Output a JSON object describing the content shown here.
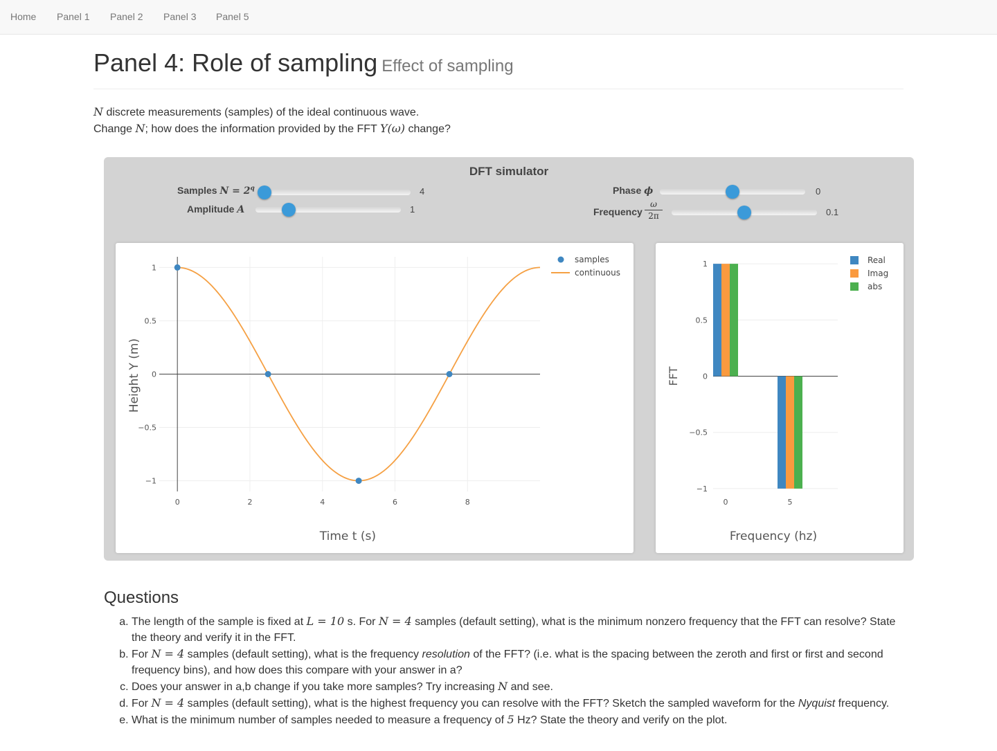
{
  "nav": {
    "items": [
      "Home",
      "Panel 1",
      "Panel 2",
      "Panel 3",
      "Panel 5"
    ]
  },
  "header": {
    "title": "Panel 4: Role of sampling",
    "subtitle": "Effect of sampling"
  },
  "intro": {
    "line1_var": "N",
    "line1_text": " discrete measurements (samples) of the ideal continuous wave.",
    "line2_a": "Change ",
    "line2_var": "N",
    "line2_b": "; how does the information provided by the FFT ",
    "line2_math": "Y(ω)",
    "line2_c": " change?"
  },
  "simulator": {
    "title": "DFT simulator",
    "samples": {
      "label": "Samples",
      "math": "N = 2",
      "sup": "q",
      "value": "4",
      "fraction": 0.0
    },
    "amplitude": {
      "label": "Amplitude",
      "math": "A",
      "value": "1",
      "fraction": 0.2
    },
    "phase": {
      "label": "Phase",
      "math": "ϕ",
      "value": "0",
      "fraction": 0.5
    },
    "frequency": {
      "label": "Frequency",
      "num": "ω",
      "den": "2π",
      "value": "0.1",
      "fraction": 0.5
    }
  },
  "chart_data": [
    {
      "type": "scatter",
      "xlabel": "Time t (s)",
      "ylabel": "Height Y (m)",
      "xlim": [
        -0.5,
        10
      ],
      "ylim": [
        -1.1,
        1.1
      ],
      "xticks": [
        "0",
        "2",
        "4",
        "6",
        "8"
      ],
      "yticks": [
        "1",
        "0.5",
        "0",
        "−0.5",
        "−1"
      ],
      "grid": true,
      "legend": "top-right",
      "series": [
        {
          "name": "samples",
          "mode": "markers",
          "color": "#3f87c1",
          "x": [
            0,
            2.5,
            5,
            7.5
          ],
          "y": [
            1,
            0,
            -1,
            0
          ]
        },
        {
          "name": "continuous",
          "mode": "line",
          "color": "#f5a043",
          "function": "cos(2*pi*0.1*t)",
          "x_range": [
            0,
            10
          ]
        }
      ]
    },
    {
      "type": "bar",
      "xlabel": "Frequency (hz)",
      "ylabel": "FFT",
      "ylim": [
        -1.05,
        1.05
      ],
      "xticks": [
        "0",
        "5"
      ],
      "yticks": [
        "1",
        "0.5",
        "0",
        "−0.5",
        "−1"
      ],
      "grid": true,
      "legend": "top-right",
      "categories": [
        0,
        5
      ],
      "series": [
        {
          "name": "Real",
          "color": "#3f87c1",
          "values": [
            1,
            -1
          ]
        },
        {
          "name": "Imag",
          "color": "#fa9a3f",
          "values": [
            1,
            -1
          ]
        },
        {
          "name": "abs",
          "color": "#4cb04f",
          "values": [
            1,
            -1
          ]
        }
      ]
    }
  ],
  "questions": {
    "title": "Questions",
    "items": [
      {
        "parts": [
          {
            "t": "The length of the sample is fixed at "
          },
          {
            "m": "L = 10"
          },
          {
            "t": " s. For "
          },
          {
            "m": "N = 4"
          },
          {
            "t": " samples (default setting), what is the minimum nonzero frequency that the FFT can resolve? State the theory and verify it in the FFT."
          }
        ]
      },
      {
        "parts": [
          {
            "t": "For "
          },
          {
            "m": "N = 4"
          },
          {
            "t": " samples (default setting), what is the frequency "
          },
          {
            "i": "resolution"
          },
          {
            "t": " of the FFT? (i.e. what is the spacing between the zeroth and first or first and second frequency bins), and how does this compare with your answer in a?"
          }
        ]
      },
      {
        "parts": [
          {
            "t": "Does your answer in a,b change if you take more samples? Try increasing "
          },
          {
            "m": "N"
          },
          {
            "t": " and see."
          }
        ]
      },
      {
        "parts": [
          {
            "t": "For "
          },
          {
            "m": "N = 4"
          },
          {
            "t": " samples (default setting), what is the highest frequency you can resolve with the FFT? Sketch the sampled waveform for the "
          },
          {
            "i": "Nyquist"
          },
          {
            "t": " frequency."
          }
        ]
      },
      {
        "parts": [
          {
            "t": "What is the minimum number of samples needed to measure a frequency of "
          },
          {
            "m": "5"
          },
          {
            "t": " Hz? State the theory and verify on the plot."
          }
        ]
      }
    ]
  }
}
